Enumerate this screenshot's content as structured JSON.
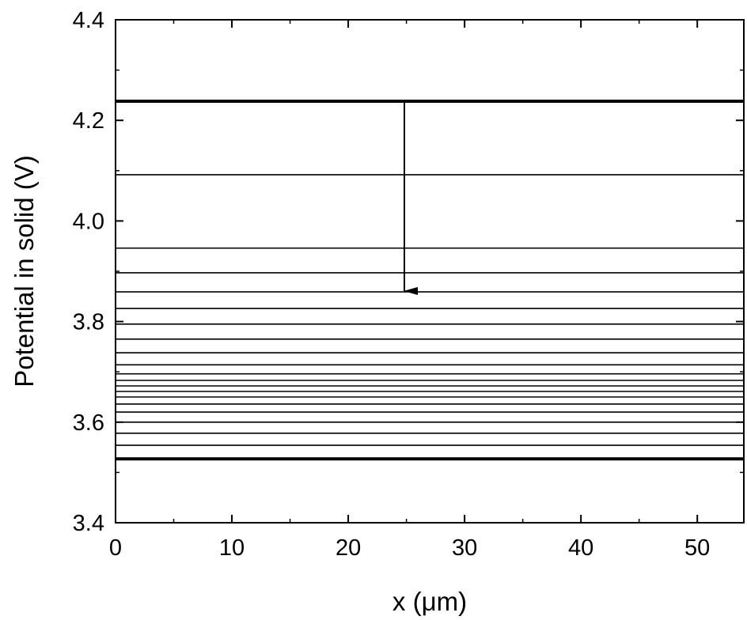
{
  "chart_data": {
    "type": "line",
    "xlabel": "x (μm)",
    "ylabel": "Potential in solid (V)",
    "xlim": [
      0,
      54
    ],
    "ylim": [
      3.4,
      4.4
    ],
    "xticks": [
      0,
      10,
      20,
      30,
      40,
      50
    ],
    "yticks": [
      3.4,
      3.6,
      3.8,
      {
        "value": 4,
        "label": "4.0"
      },
      4.2,
      4.4
    ],
    "x": [
      0,
      54
    ],
    "series": [
      {
        "color": "#000000",
        "width": 4,
        "values": [
          4.238,
          4.238
        ]
      },
      {
        "color": "#000000",
        "width": 1.6,
        "values": [
          4.092,
          4.092
        ]
      },
      {
        "color": "#000000",
        "width": 1.6,
        "values": [
          3.946,
          3.946
        ]
      },
      {
        "color": "#000000",
        "width": 1.6,
        "values": [
          3.897,
          3.897
        ]
      },
      {
        "color": "#000000",
        "width": 1.6,
        "values": [
          3.859,
          3.859
        ]
      },
      {
        "color": "#000000",
        "width": 1.6,
        "values": [
          3.826,
          3.826
        ]
      },
      {
        "color": "#000000",
        "width": 1.6,
        "values": [
          3.795,
          3.795
        ]
      },
      {
        "color": "#000000",
        "width": 1.6,
        "values": [
          3.765,
          3.765
        ]
      },
      {
        "color": "#000000",
        "width": 1.6,
        "values": [
          3.738,
          3.738
        ]
      },
      {
        "color": "#000000",
        "width": 1.6,
        "values": [
          3.714,
          3.714
        ]
      },
      {
        "color": "#000000",
        "width": 1.6,
        "values": [
          3.696,
          3.696
        ]
      },
      {
        "color": "#000000",
        "width": 1.6,
        "values": [
          3.683,
          3.683
        ]
      },
      {
        "color": "#000000",
        "width": 1.6,
        "values": [
          3.672,
          3.672
        ]
      },
      {
        "color": "#000000",
        "width": 1.6,
        "values": [
          3.661,
          3.661
        ]
      },
      {
        "color": "#000000",
        "width": 1.6,
        "values": [
          3.65,
          3.65
        ]
      },
      {
        "color": "#000000",
        "width": 1.6,
        "values": [
          3.636,
          3.636
        ]
      },
      {
        "color": "#000000",
        "width": 1.6,
        "values": [
          3.62,
          3.62
        ]
      },
      {
        "color": "#000000",
        "width": 1.6,
        "values": [
          3.6,
          3.6
        ]
      },
      {
        "color": "#000000",
        "width": 1.6,
        "values": [
          3.578,
          3.578
        ]
      },
      {
        "color": "#000000",
        "width": 1.6,
        "values": [
          3.554,
          3.554
        ]
      },
      {
        "color": "#000000",
        "width": 4,
        "values": [
          3.527,
          3.527
        ]
      }
    ]
  }
}
